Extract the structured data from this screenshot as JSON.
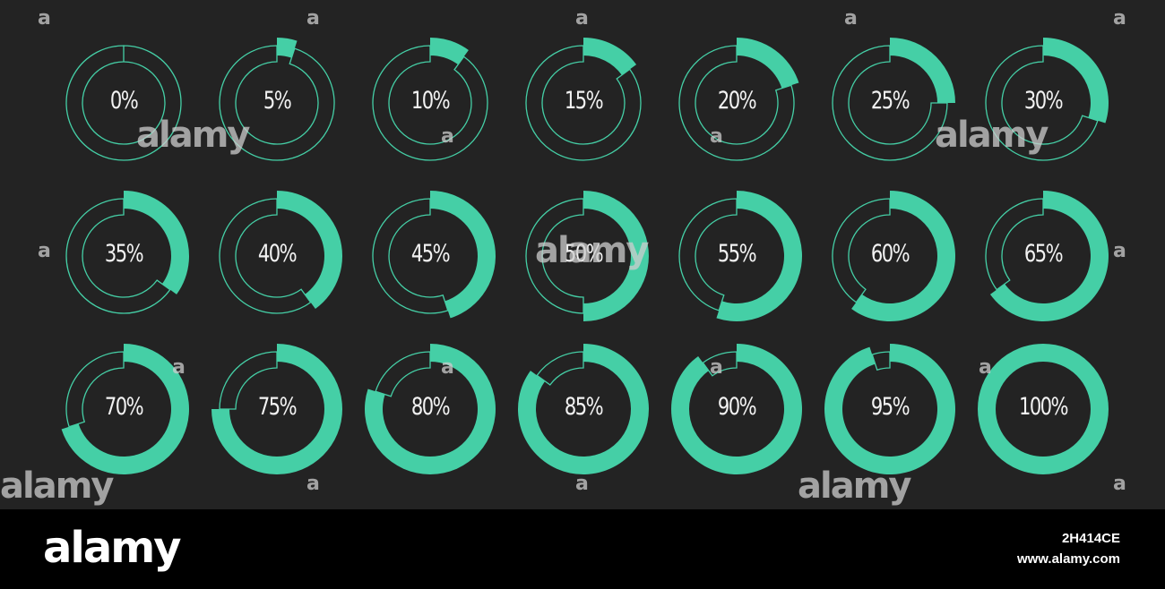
{
  "theme": {
    "background": "#232323",
    "accent": "#45cfa6",
    "text": "#f2f2f2",
    "footer": "#000000"
  },
  "indicators": [
    {
      "label": "0%",
      "value": 0
    },
    {
      "label": "5%",
      "value": 5
    },
    {
      "label": "10%",
      "value": 10
    },
    {
      "label": "15%",
      "value": 15
    },
    {
      "label": "20%",
      "value": 20
    },
    {
      "label": "25%",
      "value": 25
    },
    {
      "label": "30%",
      "value": 30
    },
    {
      "label": "35%",
      "value": 35
    },
    {
      "label": "40%",
      "value": 40
    },
    {
      "label": "45%",
      "value": 45
    },
    {
      "label": "50%",
      "value": 50
    },
    {
      "label": "55%",
      "value": 55
    },
    {
      "label": "60%",
      "value": 60
    },
    {
      "label": "65%",
      "value": 65
    },
    {
      "label": "70%",
      "value": 70
    },
    {
      "label": "75%",
      "value": 75
    },
    {
      "label": "80%",
      "value": 80
    },
    {
      "label": "85%",
      "value": 85
    },
    {
      "label": "90%",
      "value": 90
    },
    {
      "label": "95%",
      "value": 95
    },
    {
      "label": "100%",
      "value": 100
    }
  ],
  "watermark": {
    "text": "alamy",
    "mark": "a"
  },
  "footer": {
    "logo": "alamy",
    "image_id": "2H414CE",
    "url": "www.alamy.com"
  }
}
